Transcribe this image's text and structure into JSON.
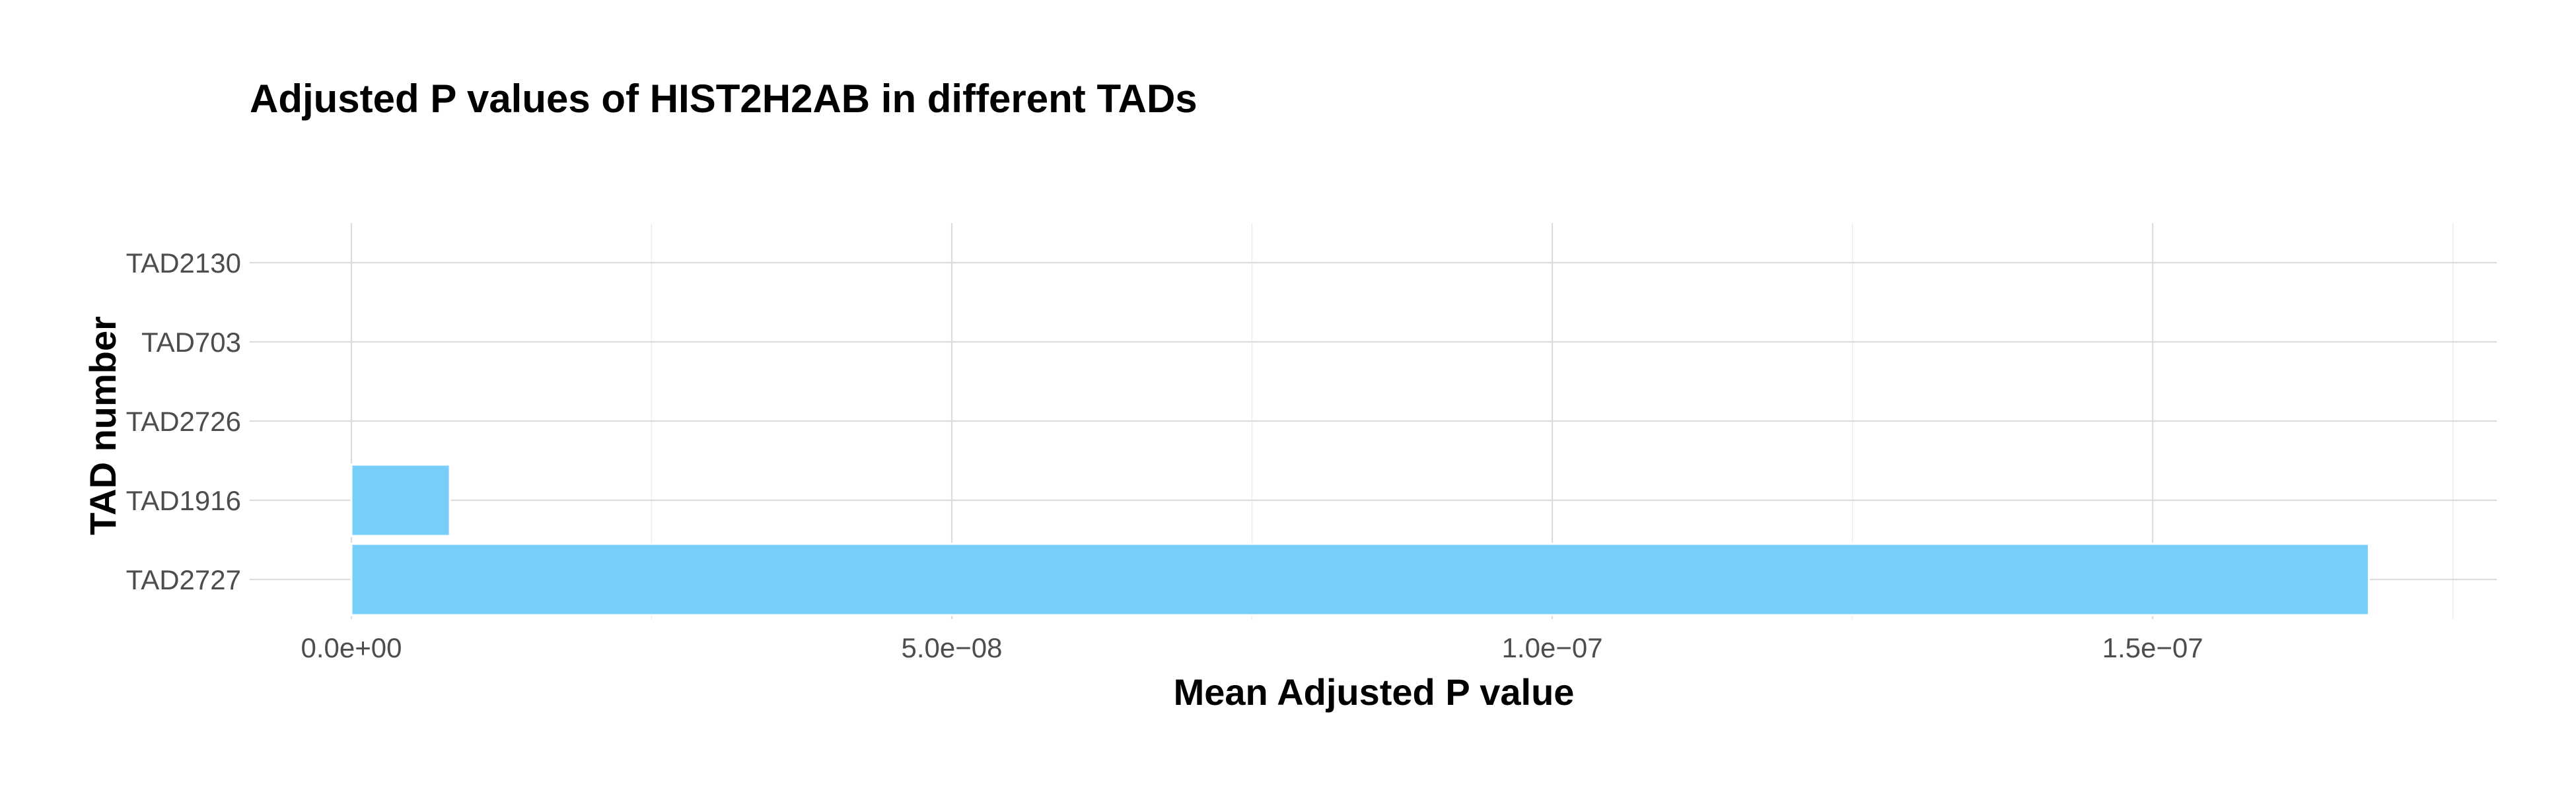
{
  "chart_data": {
    "type": "bar",
    "orientation": "horizontal",
    "title": "Adjusted P values of HIST2H2AB in different TADs",
    "xlabel": "Mean Adjusted P value",
    "ylabel": "TAD number",
    "categories": [
      "TAD2727",
      "TAD1916",
      "TAD2726",
      "TAD703",
      "TAD2130"
    ],
    "values": [
      1.68e-07,
      8.2e-09,
      0,
      0,
      0
    ],
    "xlim": [
      0,
      1.77e-07
    ],
    "xticks": [
      0,
      5e-08,
      1e-07,
      1.5e-07
    ],
    "xtick_labels": [
      "0.0e+00",
      "5.0e−08",
      "1.0e−07",
      "1.5e−07"
    ],
    "bar_color": "#75cdfa",
    "grid": true,
    "legend": "none"
  }
}
